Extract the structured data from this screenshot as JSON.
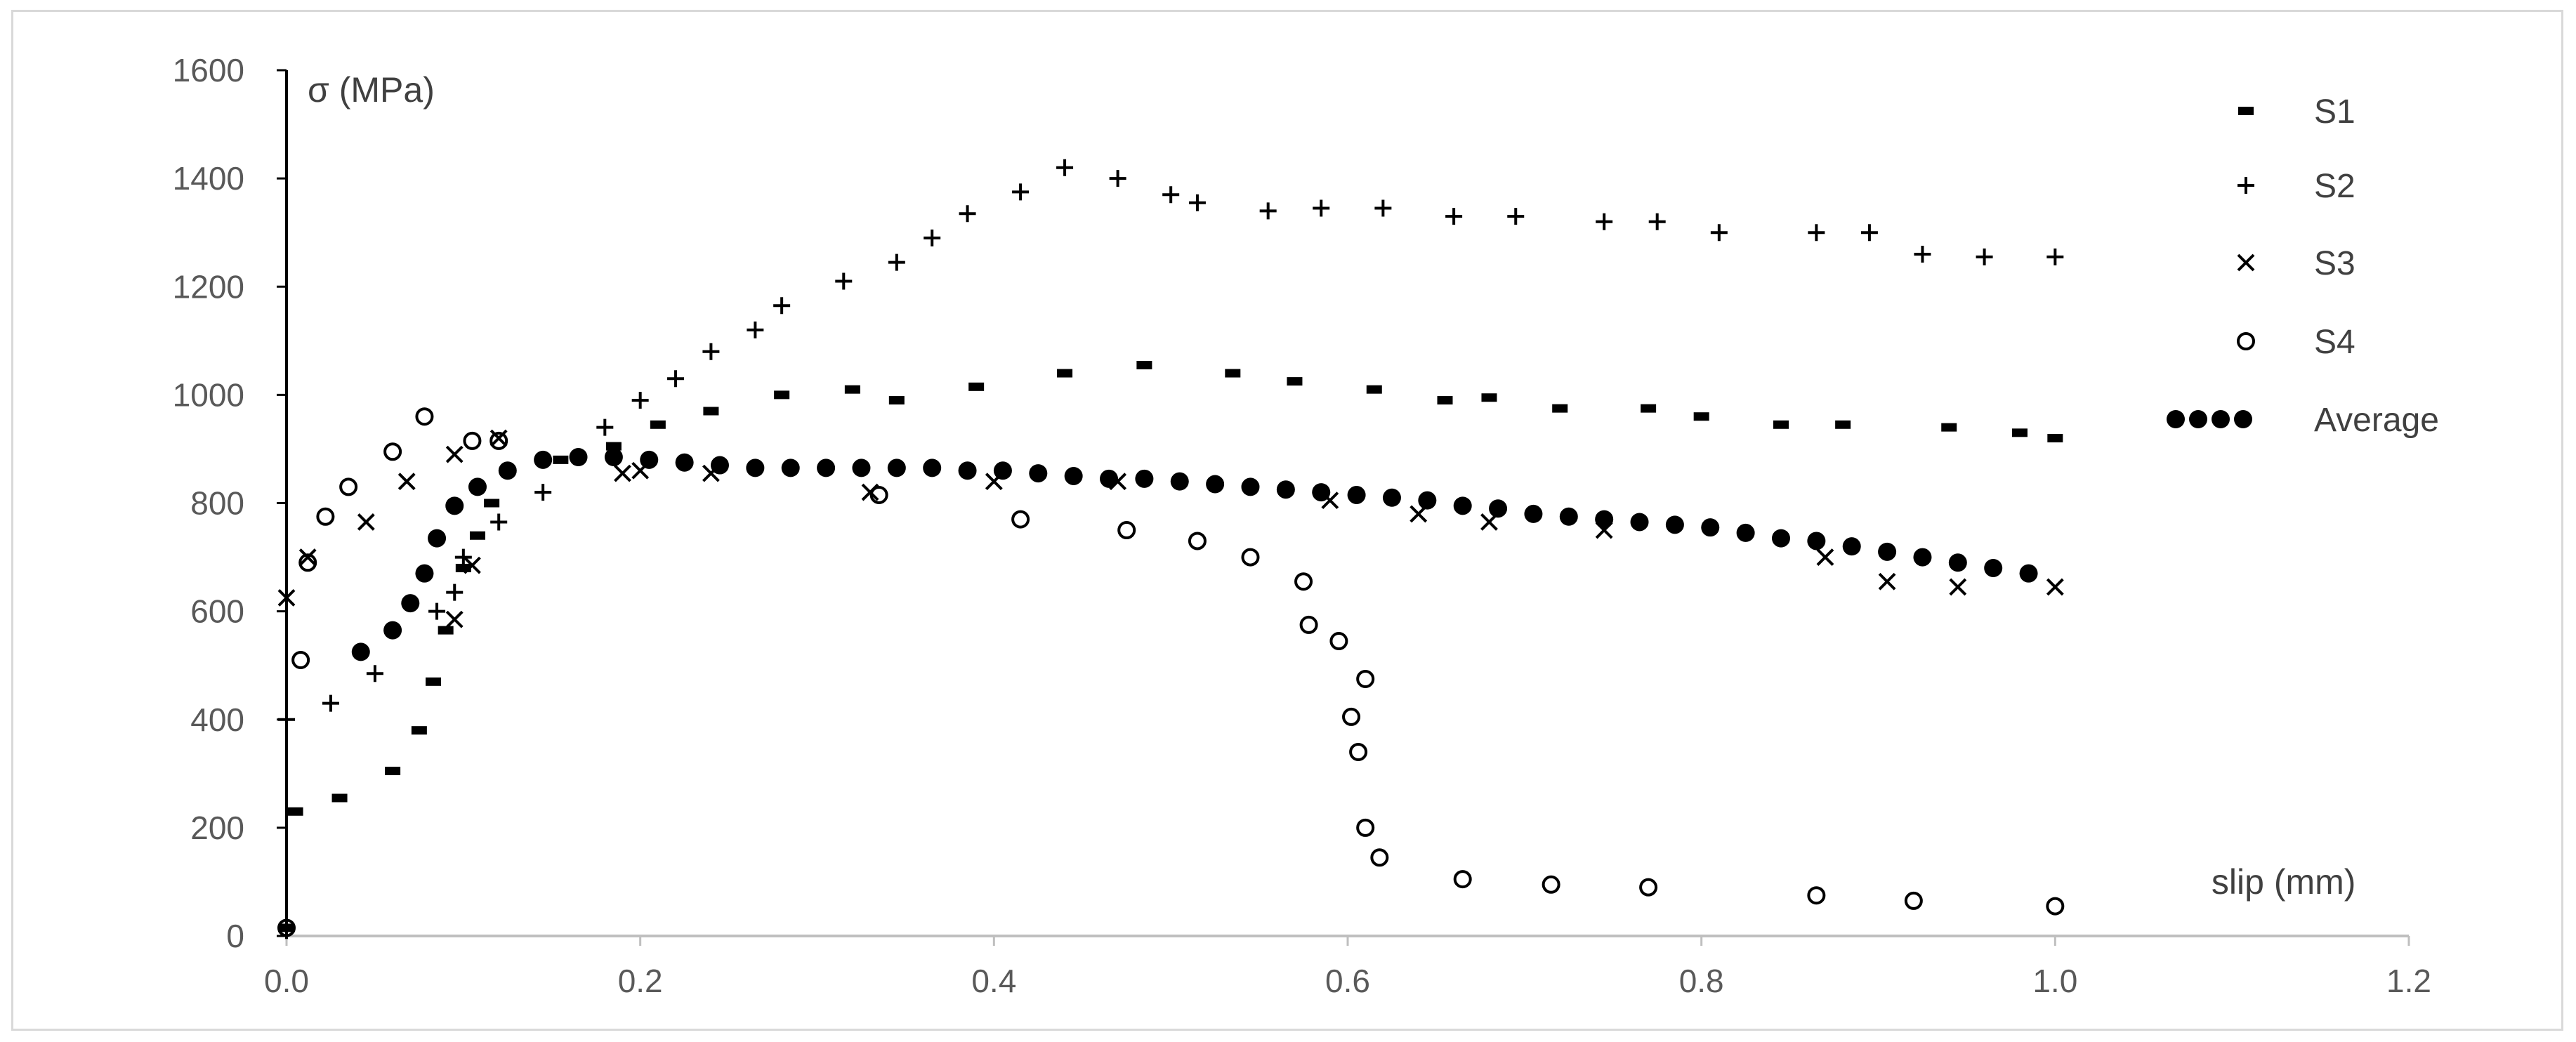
{
  "chart_data": {
    "type": "scatter",
    "title": "",
    "xlabel": "slip (mm)",
    "ylabel": "σ (MPa)",
    "xlim": [
      0,
      1.2
    ],
    "ylim": [
      0,
      1600
    ],
    "x_ticks": [
      "0.0",
      "0.2",
      "0.4",
      "0.6",
      "0.8",
      "1.0",
      "1.2"
    ],
    "y_ticks": [
      "0",
      "200",
      "400",
      "600",
      "800",
      "1000",
      "1200",
      "1400",
      "1600"
    ],
    "grid": false,
    "legend_position": "right",
    "series": [
      {
        "name": "S1",
        "marker": "dash",
        "color": "#000000",
        "points": [
          [
            0.0,
            15
          ],
          [
            0.005,
            230
          ],
          [
            0.03,
            255
          ],
          [
            0.06,
            305
          ],
          [
            0.075,
            380
          ],
          [
            0.083,
            470
          ],
          [
            0.09,
            565
          ],
          [
            0.1,
            680
          ],
          [
            0.108,
            740
          ],
          [
            0.116,
            800
          ],
          [
            0.125,
            860
          ],
          [
            0.155,
            880
          ],
          [
            0.185,
            905
          ],
          [
            0.21,
            945
          ],
          [
            0.24,
            970
          ],
          [
            0.28,
            1000
          ],
          [
            0.32,
            1010
          ],
          [
            0.345,
            990
          ],
          [
            0.39,
            1015
          ],
          [
            0.44,
            1040
          ],
          [
            0.485,
            1055
          ],
          [
            0.535,
            1040
          ],
          [
            0.57,
            1025
          ],
          [
            0.615,
            1010
          ],
          [
            0.655,
            990
          ],
          [
            0.68,
            995
          ],
          [
            0.72,
            975
          ],
          [
            0.77,
            975
          ],
          [
            0.8,
            960
          ],
          [
            0.845,
            945
          ],
          [
            0.88,
            945
          ],
          [
            0.94,
            940
          ],
          [
            0.98,
            930
          ],
          [
            1.0,
            920
          ]
        ]
      },
      {
        "name": "S2",
        "marker": "plus",
        "color": "#000000",
        "points": [
          [
            0.0,
            10
          ],
          [
            0.0,
            400
          ],
          [
            0.025,
            430
          ],
          [
            0.05,
            485
          ],
          [
            0.085,
            600
          ],
          [
            0.095,
            635
          ],
          [
            0.1,
            700
          ],
          [
            0.12,
            765
          ],
          [
            0.145,
            820
          ],
          [
            0.18,
            940
          ],
          [
            0.2,
            990
          ],
          [
            0.22,
            1030
          ],
          [
            0.24,
            1080
          ],
          [
            0.265,
            1120
          ],
          [
            0.28,
            1165
          ],
          [
            0.315,
            1210
          ],
          [
            0.345,
            1245
          ],
          [
            0.365,
            1290
          ],
          [
            0.385,
            1335
          ],
          [
            0.415,
            1375
          ],
          [
            0.44,
            1420
          ],
          [
            0.47,
            1400
          ],
          [
            0.5,
            1370
          ],
          [
            0.515,
            1355
          ],
          [
            0.555,
            1340
          ],
          [
            0.585,
            1345
          ],
          [
            0.62,
            1345
          ],
          [
            0.66,
            1330
          ],
          [
            0.695,
            1330
          ],
          [
            0.745,
            1320
          ],
          [
            0.775,
            1320
          ],
          [
            0.81,
            1300
          ],
          [
            0.865,
            1300
          ],
          [
            0.895,
            1300
          ],
          [
            0.925,
            1260
          ],
          [
            0.96,
            1255
          ],
          [
            1.0,
            1255
          ]
        ]
      },
      {
        "name": "S3",
        "marker": "x",
        "color": "#000000",
        "points": [
          [
            0.0,
            625
          ],
          [
            0.012,
            700
          ],
          [
            0.045,
            765
          ],
          [
            0.068,
            840
          ],
          [
            0.095,
            890
          ],
          [
            0.12,
            920
          ],
          [
            0.095,
            585
          ],
          [
            0.105,
            685
          ],
          [
            0.19,
            855
          ],
          [
            0.2,
            860
          ],
          [
            0.24,
            855
          ],
          [
            0.33,
            820
          ],
          [
            0.4,
            840
          ],
          [
            0.47,
            840
          ],
          [
            0.59,
            805
          ],
          [
            0.64,
            780
          ],
          [
            0.68,
            765
          ],
          [
            0.745,
            750
          ],
          [
            0.87,
            700
          ],
          [
            0.905,
            655
          ],
          [
            0.945,
            645
          ],
          [
            1.0,
            645
          ]
        ]
      },
      {
        "name": "S4",
        "marker": "circle",
        "color": "#000000",
        "points": [
          [
            0.0,
            15
          ],
          [
            0.008,
            510
          ],
          [
            0.012,
            690
          ],
          [
            0.022,
            775
          ],
          [
            0.035,
            830
          ],
          [
            0.06,
            895
          ],
          [
            0.078,
            960
          ],
          [
            0.105,
            915
          ],
          [
            0.12,
            915
          ],
          [
            0.335,
            815
          ],
          [
            0.415,
            770
          ],
          [
            0.475,
            750
          ],
          [
            0.515,
            730
          ],
          [
            0.545,
            700
          ],
          [
            0.575,
            655
          ],
          [
            0.578,
            575
          ],
          [
            0.595,
            545
          ],
          [
            0.602,
            405
          ],
          [
            0.61,
            475
          ],
          [
            0.606,
            340
          ],
          [
            0.61,
            200
          ],
          [
            0.618,
            145
          ],
          [
            0.665,
            105
          ],
          [
            0.715,
            95
          ],
          [
            0.77,
            90
          ],
          [
            0.865,
            75
          ],
          [
            0.92,
            65
          ],
          [
            1.0,
            55
          ]
        ]
      },
      {
        "name": "Average",
        "marker": "filled-circle",
        "color": "#000000",
        "points": [
          [
            0.042,
            525
          ],
          [
            0.06,
            565
          ],
          [
            0.07,
            615
          ],
          [
            0.078,
            670
          ],
          [
            0.085,
            735
          ],
          [
            0.095,
            795
          ],
          [
            0.108,
            830
          ],
          [
            0.125,
            860
          ],
          [
            0.145,
            880
          ],
          [
            0.165,
            885
          ],
          [
            0.185,
            885
          ],
          [
            0.205,
            880
          ],
          [
            0.225,
            875
          ],
          [
            0.245,
            870
          ],
          [
            0.265,
            865
          ],
          [
            0.285,
            865
          ],
          [
            0.305,
            865
          ],
          [
            0.325,
            865
          ],
          [
            0.345,
            865
          ],
          [
            0.365,
            865
          ],
          [
            0.385,
            860
          ],
          [
            0.405,
            860
          ],
          [
            0.425,
            855
          ],
          [
            0.445,
            850
          ],
          [
            0.465,
            845
          ],
          [
            0.485,
            845
          ],
          [
            0.505,
            840
          ],
          [
            0.525,
            835
          ],
          [
            0.545,
            830
          ],
          [
            0.565,
            825
          ],
          [
            0.585,
            820
          ],
          [
            0.605,
            815
          ],
          [
            0.625,
            810
          ],
          [
            0.645,
            805
          ],
          [
            0.665,
            795
          ],
          [
            0.685,
            790
          ],
          [
            0.705,
            780
          ],
          [
            0.725,
            775
          ],
          [
            0.745,
            770
          ],
          [
            0.765,
            765
          ],
          [
            0.785,
            760
          ],
          [
            0.805,
            755
          ],
          [
            0.825,
            745
          ],
          [
            0.845,
            735
          ],
          [
            0.865,
            730
          ],
          [
            0.885,
            720
          ],
          [
            0.905,
            710
          ],
          [
            0.925,
            700
          ],
          [
            0.945,
            690
          ],
          [
            0.965,
            680
          ],
          [
            0.985,
            670
          ]
        ]
      }
    ]
  }
}
